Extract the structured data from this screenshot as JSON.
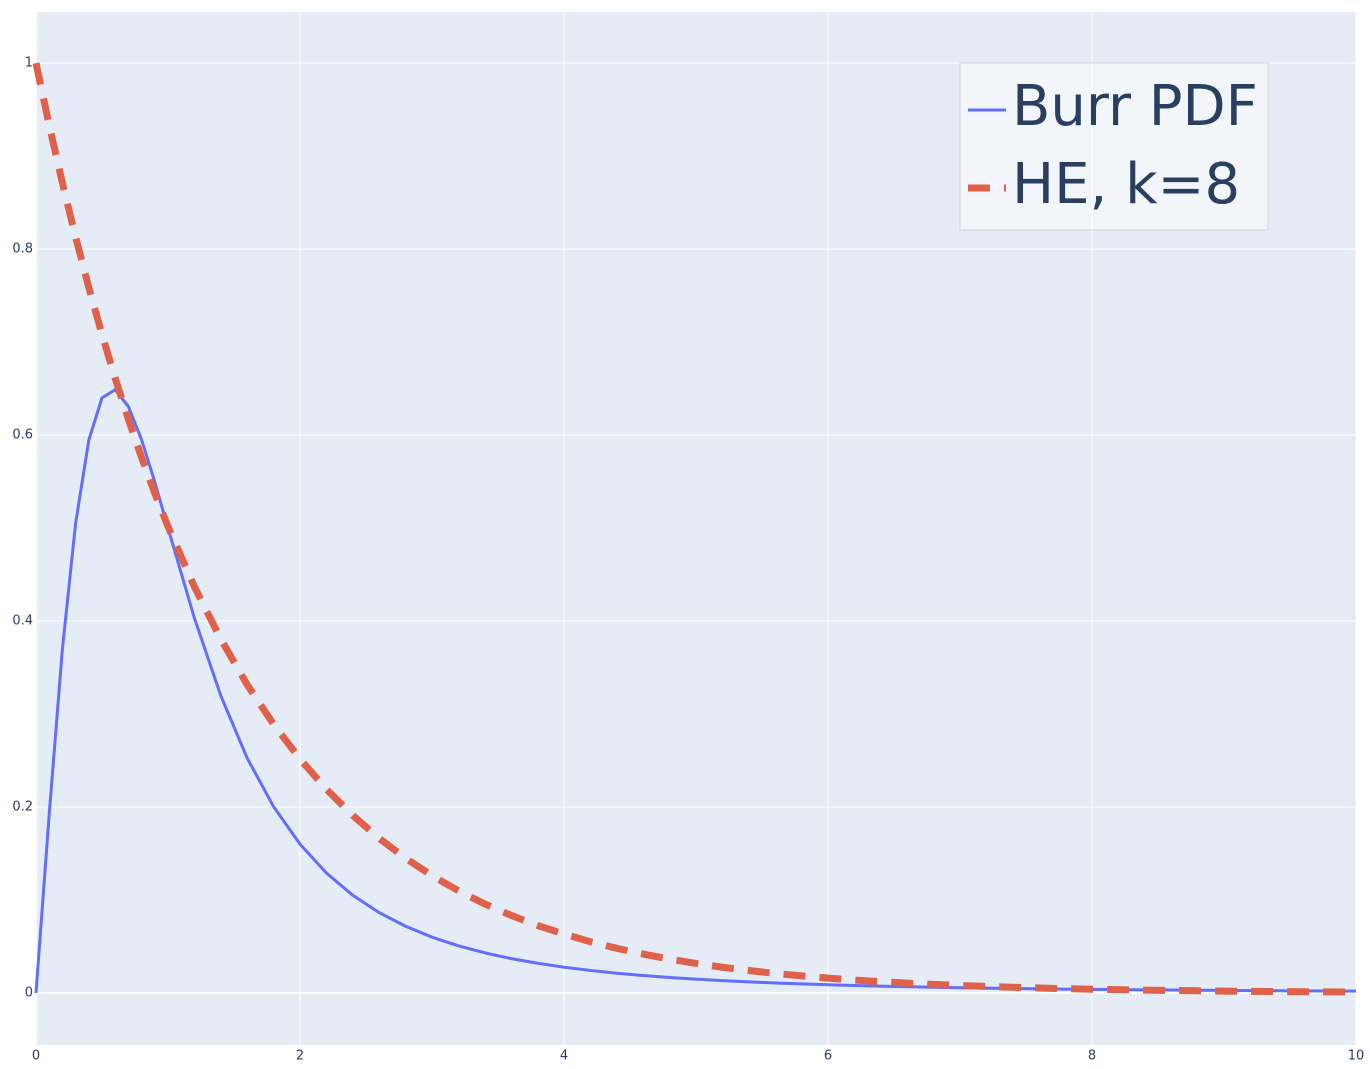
{
  "chart_data": {
    "type": "line",
    "x": [
      0,
      0.1,
      0.2,
      0.3,
      0.4,
      0.5,
      0.6,
      0.7,
      0.8,
      0.9,
      1.0,
      1.2,
      1.4,
      1.6,
      1.8,
      2.0,
      2.2,
      2.4,
      2.6,
      2.8,
      3.0,
      3.2,
      3.4,
      3.6,
      3.8,
      4.0,
      4.2,
      4.4,
      4.6,
      4.8,
      5.0,
      5.2,
      5.4,
      5.6,
      5.8,
      6.0,
      6.2,
      6.4,
      6.6,
      6.8,
      7.0,
      7.2,
      7.4,
      7.6,
      7.8,
      8.0,
      8.2,
      8.4,
      8.6,
      8.8,
      9.0,
      9.2,
      9.4,
      9.6,
      9.8,
      10
    ],
    "series": [
      {
        "name": "Burr PDF",
        "color": "#636efa",
        "dash": false,
        "values": [
          0,
          0.1922,
          0.3698,
          0.505,
          0.5945,
          0.64,
          0.6488,
          0.6306,
          0.5949,
          0.5494,
          0.5,
          0.4031,
          0.3196,
          0.2525,
          0.2003,
          0.16,
          0.129,
          0.105,
          0.0864,
          0.0717,
          0.06,
          0.0507,
          0.0431,
          0.0369,
          0.0319,
          0.0277,
          0.0242,
          0.0212,
          0.0187,
          0.0166,
          0.0148,
          0.0132,
          0.0119,
          0.0107,
          0.0097,
          0.0088,
          0.008,
          0.0073,
          0.0066,
          0.0061,
          0.0056,
          0.0052,
          0.0048,
          0.0044,
          0.0041,
          0.0038,
          0.0035,
          0.0033,
          0.0031,
          0.0029,
          0.0027,
          0.0025,
          0.0024,
          0.0022,
          0.0021,
          0.002
        ]
      },
      {
        "name": "HE, k=8",
        "color": "#e0614a",
        "dash": true,
        "values": [
          1,
          0.9333,
          0.8711,
          0.813,
          0.7588,
          0.7082,
          0.661,
          0.6169,
          0.5758,
          0.5374,
          0.5016,
          0.4369,
          0.3806,
          0.3315,
          0.2888,
          0.2516,
          0.2191,
          0.1909,
          0.1663,
          0.1448,
          0.1262,
          0.1099,
          0.0957,
          0.0834,
          0.0726,
          0.0633,
          0.0551,
          0.048,
          0.0418,
          0.0364,
          0.0317,
          0.0276,
          0.0241,
          0.021,
          0.0183,
          0.0159,
          0.0139,
          0.0121,
          0.0105,
          0.0092,
          0.008,
          0.007,
          0.0061,
          0.0053,
          0.0046,
          0.004,
          0.0035,
          0.003,
          0.0027,
          0.0023,
          0.002,
          0.0017,
          0.0015,
          0.0013,
          0.0011,
          0.001
        ]
      }
    ],
    "xlim": [
      0,
      10
    ],
    "xticks": [
      0,
      2,
      4,
      6,
      8,
      10
    ],
    "ylim": [
      -0.056,
      1.055
    ],
    "yticks": [
      0,
      0.2,
      0.4,
      0.6,
      0.8,
      1
    ],
    "grid": true,
    "legend_position": "top-right"
  }
}
